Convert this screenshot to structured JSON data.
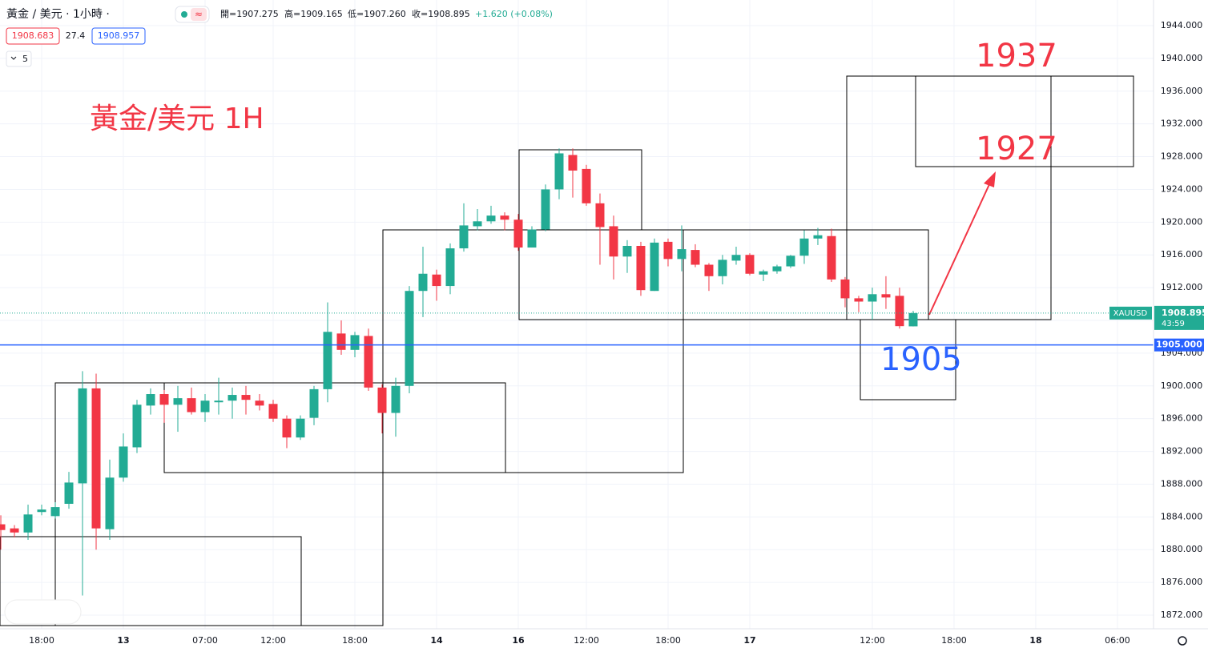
{
  "header": {
    "symbol": "黃金 / 美元 · 1小時 ·",
    "badge": "≈",
    "ohlc": [
      "開=1907.275",
      "高=1909.165",
      "低=1907.260",
      "收=1908.895",
      "+1.620 (+0.08%)"
    ],
    "bid": "1908.683",
    "spread": "27.4",
    "ask": "1908.957",
    "indicator": "5"
  },
  "chart_data": {
    "type": "candlestick",
    "title": "黃金/美元 1H",
    "open": [
      1883.1,
      1882.6,
      1882.1,
      1884.6,
      1884.1,
      1885.6,
      1888.1,
      1899.7,
      1882.5,
      1888.8,
      1892.5,
      1897.6,
      1899.0,
      1897.7,
      1898.5,
      1896.8,
      1898.0,
      1898.2,
      1898.9,
      1898.2,
      1897.8,
      1896.0,
      1893.7,
      1896.1,
      1899.6,
      1906.4,
      1904.4,
      1906.1,
      1899.8,
      1896.7,
      1900.0,
      1911.6,
      1913.6,
      1912.2,
      1916.8,
      1919.5,
      1920.1,
      1920.8,
      1920.3,
      1916.9,
      1919.1,
      1924.0,
      1928.2,
      1926.5,
      1922.3,
      1919.5,
      1915.8,
      1917.1,
      1911.6,
      1917.6,
      1915.5,
      1916.6,
      1914.8,
      1913.4,
      1915.3,
      1916.0,
      1913.6,
      1914.0,
      1914.6,
      1915.9,
      1918.0,
      1918.3,
      1913.0,
      1910.7,
      1910.3,
      1911.2,
      1911.0,
      1907.275
    ],
    "high": [
      1884.2,
      1883.0,
      1885.5,
      1885.5,
      1885.8,
      1889.5,
      1901.8,
      1901.5,
      1891.0,
      1894.2,
      1898.3,
      1899.7,
      1899.5,
      1900.0,
      1899.8,
      1899.0,
      1901.0,
      1899.8,
      1900.0,
      1899.0,
      1898.3,
      1896.4,
      1896.4,
      1900.0,
      1910.2,
      1908.0,
      1906.6,
      1907.0,
      1900.2,
      1901.0,
      1912.2,
      1917.0,
      1914.2,
      1917.4,
      1922.3,
      1921.6,
      1922.0,
      1921.2,
      1921.0,
      1919.5,
      1924.6,
      1929.0,
      1929.0,
      1927.0,
      1923.5,
      1920.8,
      1917.8,
      1917.6,
      1918.0,
      1918.0,
      1919.6,
      1917.3,
      1915.0,
      1916.0,
      1917.0,
      1916.2,
      1914.2,
      1914.8,
      1916.0,
      1919.0,
      1919.3,
      1919.2,
      1913.3,
      1911.0,
      1912.0,
      1913.4,
      1912.0,
      1909.165
    ],
    "low": [
      1880.0,
      1881.5,
      1881.2,
      1884.2,
      1883.8,
      1885.0,
      1874.4,
      1880.0,
      1881.2,
      1888.3,
      1891.8,
      1896.5,
      1895.5,
      1894.4,
      1896.5,
      1895.6,
      1896.5,
      1896.0,
      1896.5,
      1897.0,
      1895.6,
      1892.4,
      1893.4,
      1895.2,
      1898.0,
      1903.8,
      1903.5,
      1899.4,
      1894.2,
      1893.8,
      1899.1,
      1908.4,
      1910.4,
      1911.2,
      1916.4,
      1919.0,
      1919.8,
      1919.0,
      1916.5,
      1916.9,
      1918.9,
      1922.8,
      1923.0,
      1922.0,
      1914.8,
      1913.0,
      1913.8,
      1911.0,
      1911.6,
      1914.6,
      1914.0,
      1914.5,
      1911.6,
      1912.4,
      1914.8,
      1913.5,
      1912.8,
      1913.7,
      1914.4,
      1914.9,
      1917.2,
      1912.7,
      1909.6,
      1909.0,
      1908.1,
      1909.4,
      1907.0,
      1907.26
    ],
    "close": [
      1882.4,
      1882.1,
      1884.3,
      1884.9,
      1885.2,
      1888.2,
      1899.7,
      1882.6,
      1888.8,
      1892.6,
      1897.7,
      1899.0,
      1897.7,
      1898.5,
      1896.8,
      1898.2,
      1898.2,
      1898.9,
      1898.3,
      1897.6,
      1896.0,
      1893.7,
      1896.0,
      1899.6,
      1906.6,
      1904.4,
      1906.2,
      1899.8,
      1896.7,
      1900.0,
      1911.6,
      1913.7,
      1912.2,
      1916.8,
      1919.6,
      1920.1,
      1920.8,
      1920.3,
      1916.9,
      1919.1,
      1924.0,
      1928.4,
      1926.3,
      1922.3,
      1919.4,
      1915.8,
      1917.1,
      1911.7,
      1917.5,
      1915.5,
      1916.7,
      1914.8,
      1913.4,
      1915.4,
      1916.0,
      1913.7,
      1914.0,
      1914.6,
      1915.9,
      1918.0,
      1918.4,
      1913.0,
      1910.7,
      1910.3,
      1911.2,
      1910.8,
      1907.3,
      1908.895
    ],
    "up_color": "#22ab94",
    "down_color": "#f23645",
    "xlim": [
      -0.06,
      84.65
    ],
    "xticks": [
      {
        "value": 3,
        "label": "18:00"
      },
      {
        "value": 9,
        "label": "13"
      },
      {
        "value": 15,
        "label": "07:00"
      },
      {
        "value": 20,
        "label": "12:00"
      },
      {
        "value": 26,
        "label": "18:00"
      },
      {
        "value": 32,
        "label": "14"
      },
      {
        "value": 38,
        "label": "16"
      },
      {
        "value": 43,
        "label": "12:00"
      },
      {
        "value": 49,
        "label": "18:00"
      },
      {
        "value": 55,
        "label": "17"
      },
      {
        "value": 64,
        "label": "12:00"
      },
      {
        "value": 70,
        "label": "18:00"
      },
      {
        "value": 76,
        "label": "18"
      },
      {
        "value": 82,
        "label": "06:00"
      }
    ],
    "ylim": [
      1870.34,
      1947.13
    ],
    "yticks": [
      {
        "value": 1944,
        "label": "1944.000"
      },
      {
        "value": 1940,
        "label": "1940.000"
      },
      {
        "value": 1936,
        "label": "1936.000"
      },
      {
        "value": 1932,
        "label": "1932.000"
      },
      {
        "value": 1928,
        "label": "1928.000"
      },
      {
        "value": 1924,
        "label": "1924.000"
      },
      {
        "value": 1920,
        "label": "1920.000"
      },
      {
        "value": 1916,
        "label": "1916.000"
      },
      {
        "value": 1912,
        "label": "1912.000"
      },
      {
        "value": 1908,
        "label": "1908.000"
      },
      {
        "value": 1904,
        "label": "1904.000"
      },
      {
        "value": 1900,
        "label": "1900.000"
      },
      {
        "value": 1896,
        "label": "1896.000"
      },
      {
        "value": 1892,
        "label": "1892.000"
      },
      {
        "value": 1888,
        "label": "1888.000"
      },
      {
        "value": 1884,
        "label": "1884.000"
      },
      {
        "value": 1880,
        "label": "1880.000"
      },
      {
        "value": 1876,
        "label": "1876.000"
      },
      {
        "value": 1872,
        "label": "1872.000"
      }
    ],
    "grid": true,
    "hline": {
      "value": 1905,
      "label": "1905.000",
      "color": "#2962ff"
    },
    "last_price": {
      "symbol": "XAUUSD",
      "label": "1908.895",
      "countdown": "43:59"
    },
    "annotations": [
      "1937",
      "1927",
      "1905"
    ]
  }
}
